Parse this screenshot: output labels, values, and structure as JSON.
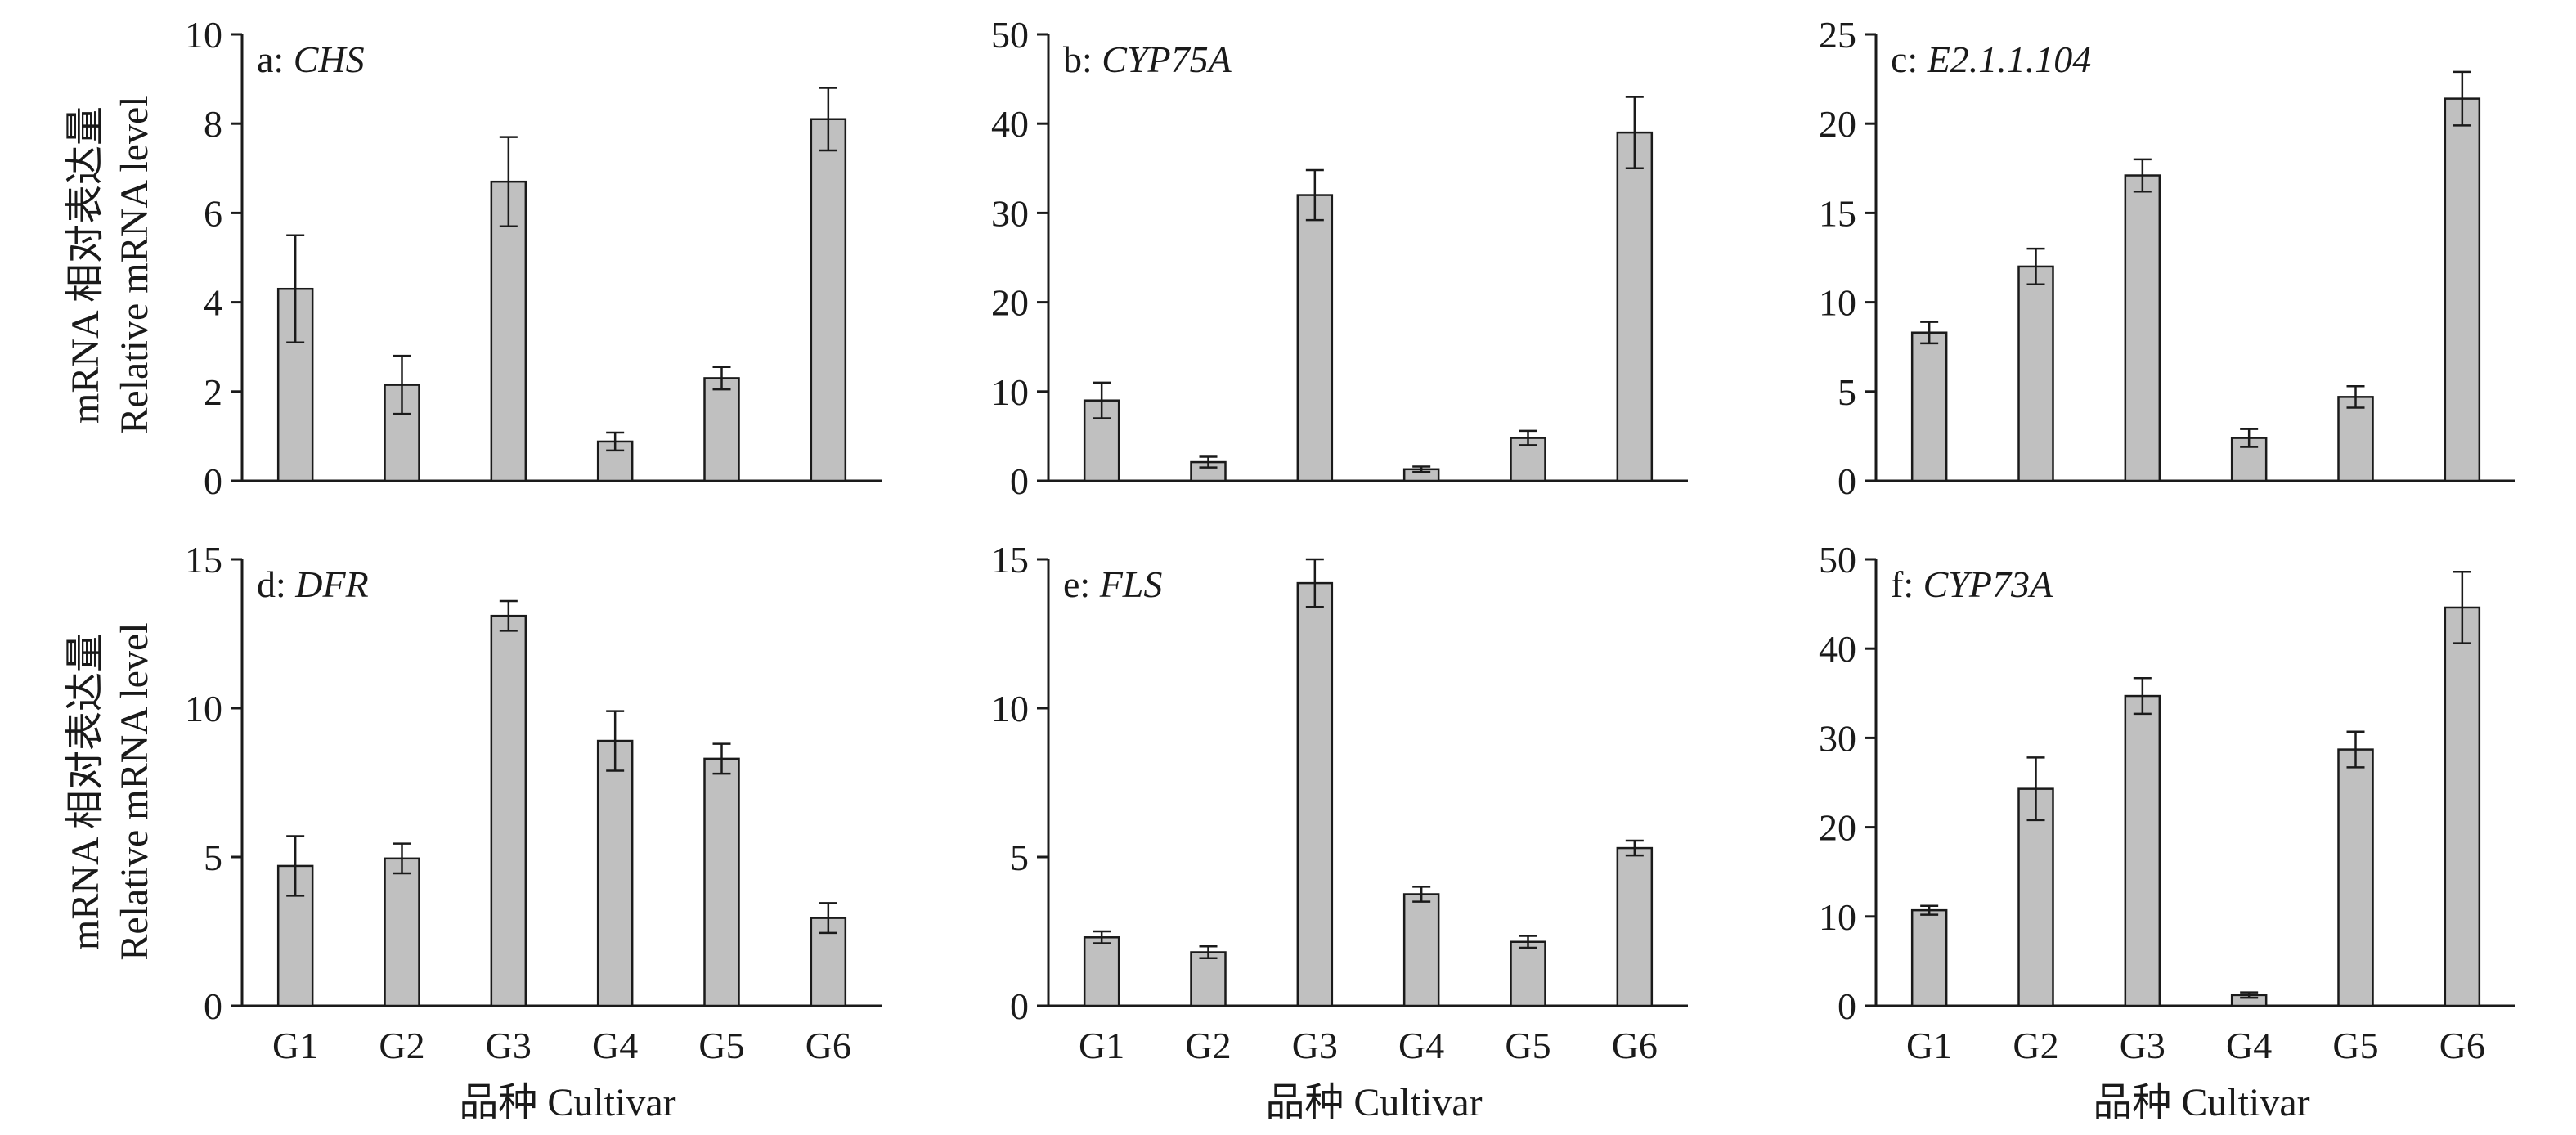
{
  "figure": {
    "y_axis_title_cn": "mRNA 相对表达量",
    "y_axis_title_en": "Relative mRNA level",
    "x_axis_title": "品种 Cultivar"
  },
  "chart_data": [
    {
      "type": "bar",
      "panel": "a",
      "label_prefix": "a: ",
      "gene": "CHS",
      "categories": [
        "G1",
        "G2",
        "G3",
        "G4",
        "G5",
        "G6"
      ],
      "values": [
        4.3,
        2.15,
        6.7,
        0.88,
        2.3,
        8.1
      ],
      "errors": [
        1.2,
        0.65,
        1.0,
        0.2,
        0.25,
        0.7
      ],
      "ylim": [
        0,
        10
      ],
      "yticks": [
        0,
        2,
        4,
        6,
        8,
        10
      ],
      "xlabel": "",
      "ylabel": "mRNA 相对表达量 Relative mRNA level"
    },
    {
      "type": "bar",
      "panel": "b",
      "label_prefix": "b: ",
      "gene": "CYP75A",
      "categories": [
        "G1",
        "G2",
        "G3",
        "G4",
        "G5",
        "G6"
      ],
      "values": [
        9.0,
        2.1,
        32.0,
        1.3,
        4.8,
        39.0
      ],
      "errors": [
        2.0,
        0.6,
        2.8,
        0.3,
        0.8,
        4.0
      ],
      "ylim": [
        0,
        50
      ],
      "yticks": [
        0,
        10,
        20,
        30,
        40,
        50
      ],
      "xlabel": "",
      "ylabel": ""
    },
    {
      "type": "bar",
      "panel": "c",
      "label_prefix": "c: ",
      "gene": "E2.1.1.104",
      "categories": [
        "G1",
        "G2",
        "G3",
        "G4",
        "G5",
        "G6"
      ],
      "values": [
        8.3,
        12.0,
        17.1,
        2.4,
        4.7,
        21.4
      ],
      "errors": [
        0.6,
        1.0,
        0.9,
        0.5,
        0.6,
        1.5
      ],
      "ylim": [
        0,
        25
      ],
      "yticks": [
        0,
        5,
        10,
        15,
        20,
        25
      ],
      "xlabel": "",
      "ylabel": ""
    },
    {
      "type": "bar",
      "panel": "d",
      "label_prefix": "d: ",
      "gene": "DFR",
      "categories": [
        "G1",
        "G2",
        "G3",
        "G4",
        "G5",
        "G6"
      ],
      "values": [
        4.7,
        4.95,
        13.1,
        8.9,
        8.3,
        2.95
      ],
      "errors": [
        1.0,
        0.5,
        0.5,
        1.0,
        0.5,
        0.5
      ],
      "ylim": [
        0,
        15
      ],
      "yticks": [
        0,
        5,
        10,
        15
      ],
      "xlabel": "品种 Cultivar",
      "ylabel": "mRNA 相对表达量 Relative mRNA level"
    },
    {
      "type": "bar",
      "panel": "e",
      "label_prefix": "e: ",
      "gene": "FLS",
      "categories": [
        "G1",
        "G2",
        "G3",
        "G4",
        "G5",
        "G6"
      ],
      "values": [
        2.3,
        1.8,
        14.2,
        3.75,
        2.15,
        5.3
      ],
      "errors": [
        0.2,
        0.2,
        0.8,
        0.25,
        0.2,
        0.25
      ],
      "ylim": [
        0,
        15
      ],
      "yticks": [
        0,
        5,
        10,
        15
      ],
      "xlabel": "品种 Cultivar",
      "ylabel": ""
    },
    {
      "type": "bar",
      "panel": "f",
      "label_prefix": "f: ",
      "gene": "CYP73A",
      "categories": [
        "G1",
        "G2",
        "G3",
        "G4",
        "G5",
        "G6"
      ],
      "values": [
        10.7,
        24.3,
        34.7,
        1.2,
        28.7,
        44.6
      ],
      "errors": [
        0.5,
        3.5,
        2.0,
        0.3,
        2.0,
        4.0
      ],
      "ylim": [
        0,
        50
      ],
      "yticks": [
        0,
        10,
        20,
        30,
        40,
        50
      ],
      "xlabel": "品种 Cultivar",
      "ylabel": ""
    }
  ]
}
